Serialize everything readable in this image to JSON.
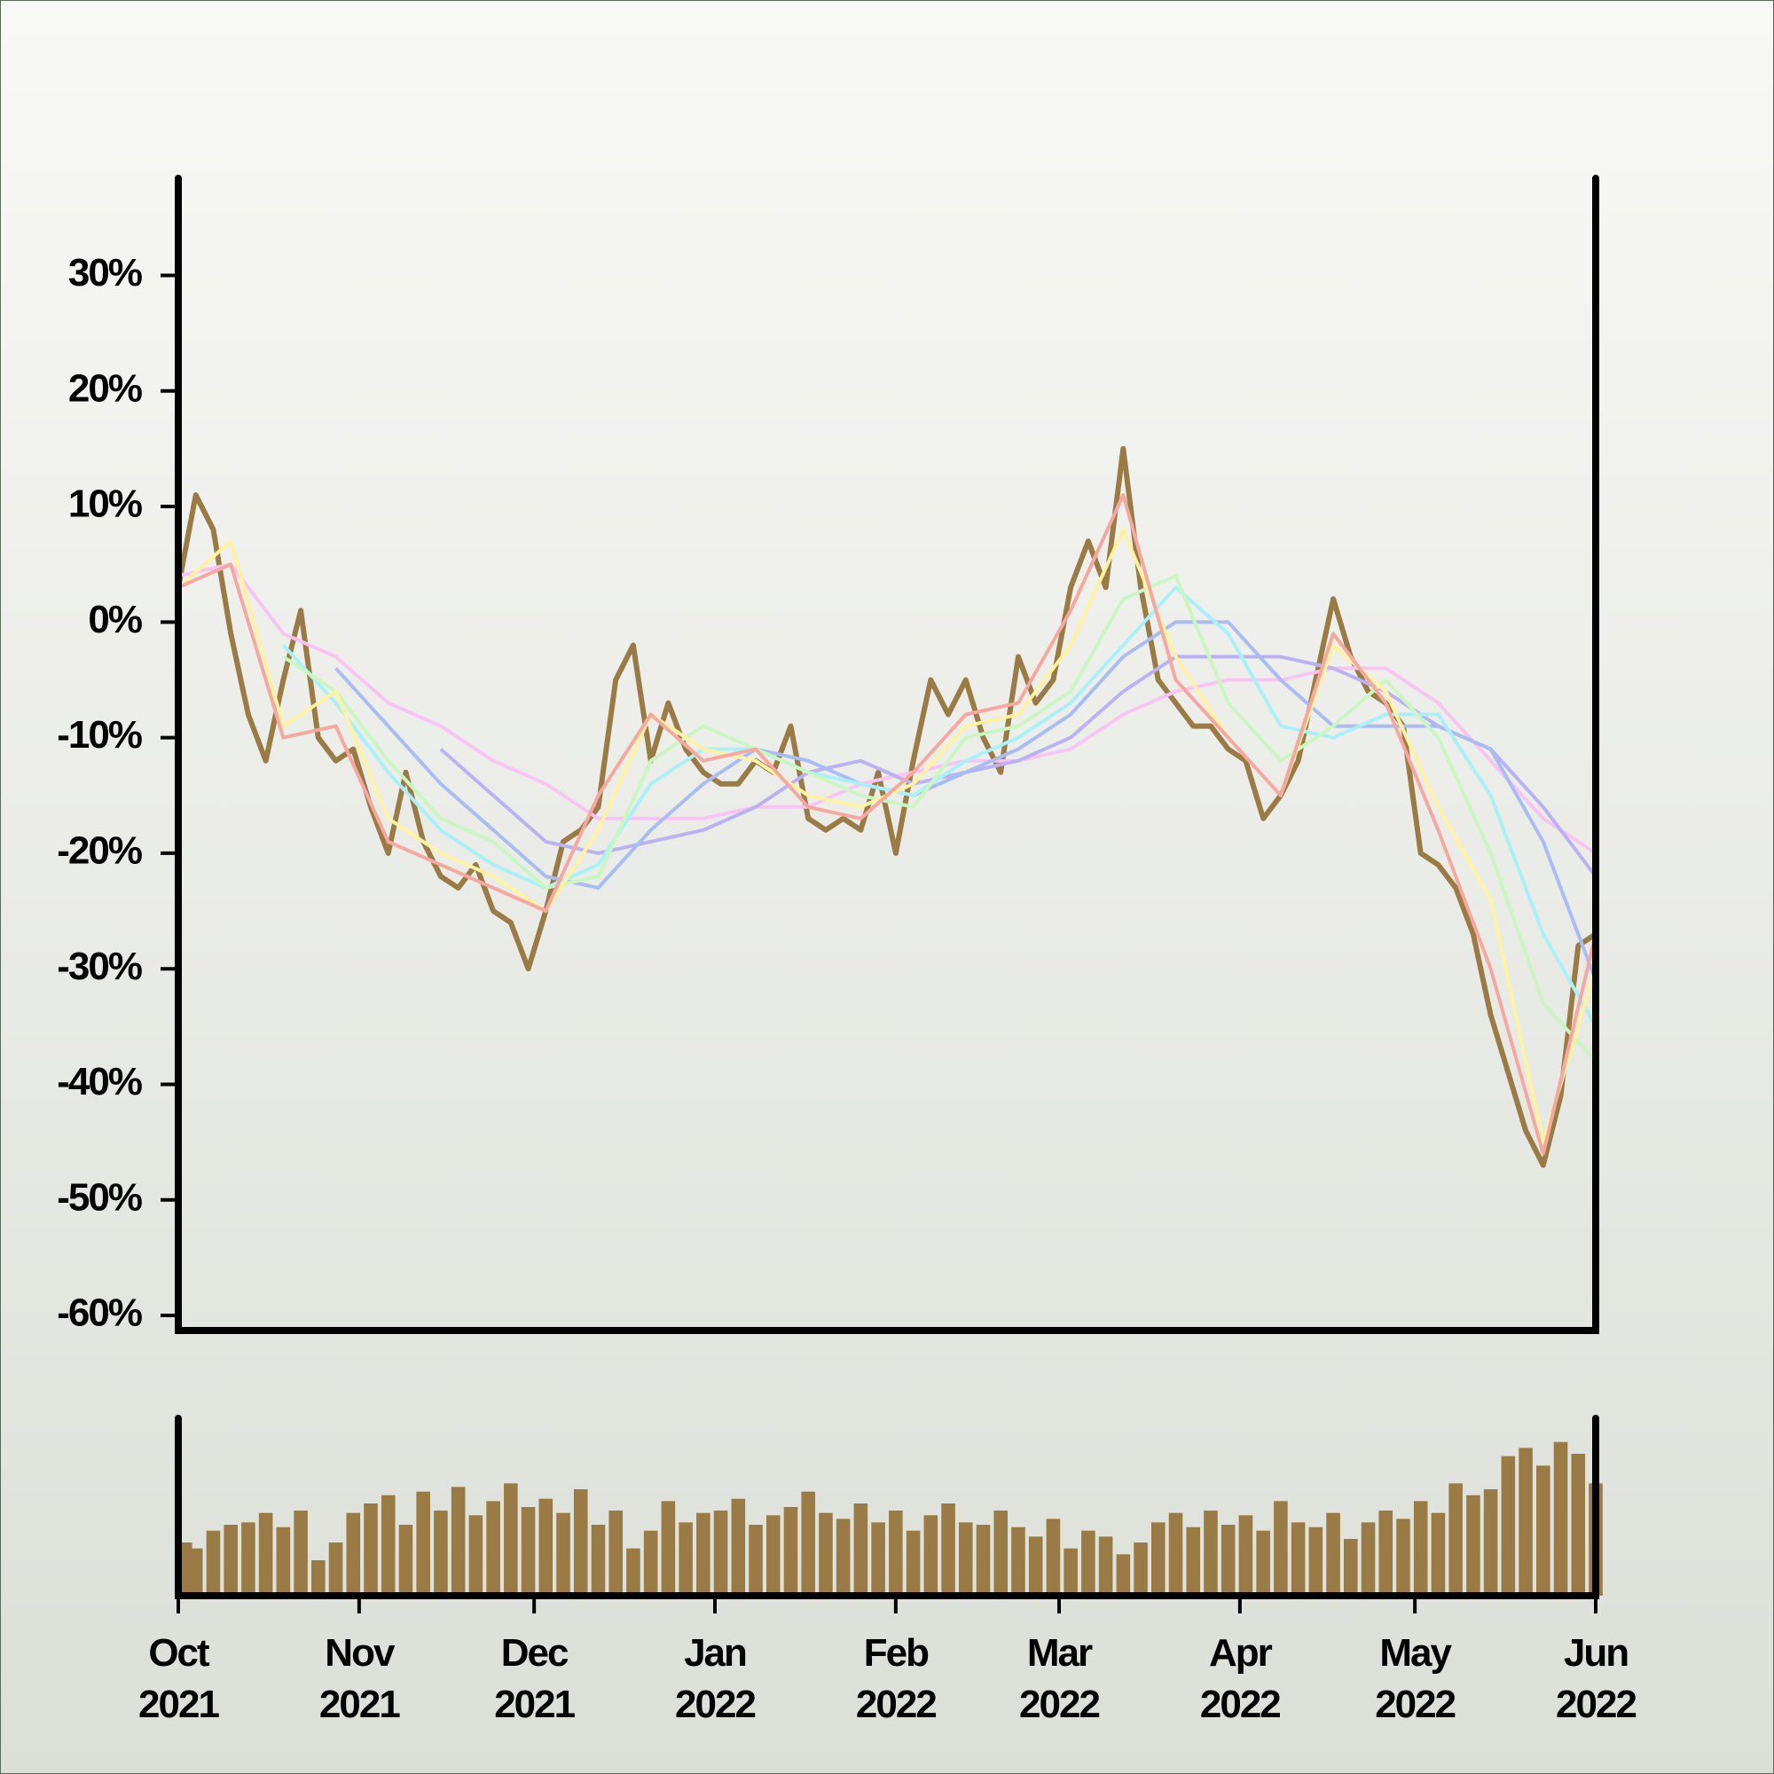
{
  "chart_data": [
    {
      "type": "line",
      "xlim": [
        0,
        243
      ],
      "ylim": [
        -61.3,
        38.4
      ],
      "yticks": [
        {
          "value": -60,
          "label": "-60%"
        },
        {
          "value": -50,
          "label": "-50%"
        },
        {
          "value": -40,
          "label": "-40%"
        },
        {
          "value": -30,
          "label": "-30%"
        },
        {
          "value": -20,
          "label": "-20%"
        },
        {
          "value": -10,
          "label": "-10%"
        },
        {
          "value": 0,
          "label": "0%"
        },
        {
          "value": 10,
          "label": "10%"
        },
        {
          "value": 20,
          "label": "20%"
        },
        {
          "value": 30,
          "label": "30%"
        }
      ],
      "x": [
        0,
        3,
        6,
        9,
        12,
        15,
        18,
        21,
        24,
        27,
        30,
        33,
        36,
        39,
        42,
        45,
        48,
        51,
        54,
        57,
        60,
        63,
        66,
        69,
        72,
        75,
        78,
        81,
        84,
        87,
        90,
        93,
        96,
        99,
        102,
        105,
        108,
        111,
        114,
        117,
        120,
        123,
        126,
        129,
        132,
        135,
        138,
        141,
        144,
        147,
        150,
        153,
        156,
        159,
        162,
        165,
        168,
        171,
        174,
        177,
        180,
        183,
        186,
        189,
        192,
        195,
        198,
        201,
        204,
        207,
        210,
        213,
        216,
        219,
        222,
        225,
        228,
        231,
        234,
        237,
        240,
        243
      ],
      "series": [
        {
          "color": "#9a7b45",
          "values": [
            3,
            11,
            8,
            -1,
            -8,
            -12,
            -5,
            1,
            -10,
            -12,
            -11,
            -16,
            -20,
            -13,
            -19,
            -22,
            -23,
            -21,
            -25,
            -26,
            -30,
            -25,
            -19,
            -18,
            -16,
            -5,
            -2,
            -12,
            -7,
            -11,
            -13,
            -14,
            -14,
            -12,
            -13,
            -9,
            -17,
            -18,
            -17,
            -18,
            -13,
            -20,
            -12,
            -5,
            -8,
            -5,
            -10,
            -13,
            -3,
            -7,
            -5,
            3,
            7,
            3,
            15,
            3,
            -5,
            -7,
            -9,
            -9,
            -11,
            -12,
            -17,
            -15,
            -12,
            -5,
            2,
            -3,
            -6,
            -7,
            -9,
            -20,
            -21,
            -23,
            -27,
            -34,
            -39,
            -44,
            -47,
            -41,
            -28,
            -27
          ]
        },
        {
          "color": "#f9c4f4",
          "x": [
            0,
            9,
            18,
            27,
            36,
            45,
            54,
            63,
            72,
            81,
            90,
            99,
            108,
            117,
            126,
            135,
            144,
            153,
            162,
            171,
            180,
            189,
            198,
            207,
            216,
            225,
            234,
            243
          ],
          "values": [
            4,
            5,
            -1,
            -3,
            -7,
            -9,
            -12,
            -14,
            -17,
            -17,
            -17,
            -16,
            -16,
            -14,
            -13,
            -12,
            -12,
            -11,
            -8,
            -6,
            -5,
            -5,
            -4,
            -4,
            -7,
            -12,
            -17,
            -20
          ]
        },
        {
          "color": "#bab2f2",
          "x": [
            0,
            9,
            18,
            27,
            36,
            45,
            54,
            63,
            72,
            81,
            90,
            99,
            108,
            117,
            126,
            135,
            144,
            153,
            162,
            171,
            180,
            189,
            198,
            207,
            216,
            225,
            234,
            243
          ],
          "values": [
            null,
            null,
            null,
            null,
            null,
            -11,
            -15,
            -19,
            -20,
            -19,
            -18,
            -16,
            -13,
            -12,
            -14,
            -13,
            -12,
            -10,
            -6,
            -3,
            -3,
            -3,
            -4,
            -6,
            -9,
            -11,
            -16,
            -22
          ]
        },
        {
          "color": "#a9bdf2",
          "x": [
            0,
            9,
            18,
            27,
            36,
            45,
            54,
            63,
            72,
            81,
            90,
            99,
            108,
            117,
            126,
            135,
            144,
            153,
            162,
            171,
            180,
            189,
            198,
            207,
            216,
            225,
            234,
            243
          ],
          "values": [
            null,
            null,
            null,
            -4,
            -9,
            -14,
            -18,
            -22,
            -23,
            -18,
            -14,
            -11,
            -12,
            -14,
            -15,
            -13,
            -11,
            -8,
            -3,
            0,
            0,
            -5,
            -9,
            -9,
            -9,
            -11,
            -19,
            -31
          ]
        },
        {
          "color": "#aaf0f8",
          "x": [
            0,
            9,
            18,
            27,
            36,
            45,
            54,
            63,
            72,
            81,
            90,
            99,
            108,
            117,
            126,
            135,
            144,
            153,
            162,
            171,
            180,
            189,
            198,
            207,
            216,
            225,
            234,
            243
          ],
          "values": [
            null,
            null,
            -2,
            -7,
            -13,
            -18,
            -21,
            -23,
            -21,
            -14,
            -11,
            -11,
            -13,
            -14,
            -15,
            -12,
            -10,
            -7,
            -2,
            3,
            -1,
            -9,
            -10,
            -8,
            -8,
            -15,
            -27,
            -35
          ]
        },
        {
          "color": "#caf6c2",
          "x": [
            0,
            9,
            18,
            27,
            36,
            45,
            54,
            63,
            72,
            81,
            90,
            99,
            108,
            117,
            126,
            135,
            144,
            153,
            162,
            171,
            180,
            189,
            198,
            207,
            216,
            225,
            234,
            243
          ],
          "values": [
            null,
            null,
            -3,
            -6,
            -12,
            -17,
            -19,
            -23,
            -22,
            -12,
            -9,
            -11,
            -13,
            -15,
            -16,
            -10,
            -9,
            -6,
            2,
            4,
            -7,
            -12,
            -9,
            -5,
            -10,
            -20,
            -33,
            -38
          ]
        },
        {
          "color": "#fff2a2",
          "x": [
            0,
            9,
            18,
            27,
            36,
            45,
            54,
            63,
            72,
            81,
            90,
            99,
            108,
            117,
            126,
            135,
            144,
            153,
            162,
            171,
            180,
            189,
            198,
            207,
            216,
            225,
            234,
            243
          ],
          "values": [
            3,
            7,
            -9,
            -6,
            -17,
            -20,
            -22,
            -25,
            -18,
            -8,
            -11,
            -12,
            -15,
            -16,
            -14,
            -9,
            -8,
            -2,
            8,
            -3,
            -10,
            -15,
            -2,
            -6,
            -16,
            -24,
            -45,
            -30
          ]
        },
        {
          "color": "#f5a8a0",
          "x": [
            0,
            9,
            18,
            27,
            36,
            45,
            54,
            63,
            72,
            81,
            90,
            99,
            108,
            117,
            126,
            135,
            144,
            153,
            162,
            171,
            180,
            189,
            198,
            207,
            216,
            225,
            234,
            243
          ],
          "values": [
            3,
            5,
            -10,
            -9,
            -19,
            -21,
            -23,
            -25,
            -15,
            -8,
            -12,
            -11,
            -16,
            -17,
            -13,
            -8,
            -7,
            1,
            11,
            -5,
            -10,
            -15,
            -1,
            -7,
            -18,
            -30,
            -46,
            -27
          ]
        }
      ]
    },
    {
      "type": "bar",
      "color": "#9a7b45",
      "xlim": [
        0,
        243
      ],
      "ylim": [
        0,
        150
      ],
      "xticks": [
        {
          "value": 0,
          "label": "Oct 2021"
        },
        {
          "value": 31,
          "label": "Nov 2021"
        },
        {
          "value": 61,
          "label": "Dec 2021"
        },
        {
          "value": 92,
          "label": "Jan 2022"
        },
        {
          "value": 123,
          "label": "Feb 2022"
        },
        {
          "value": 151,
          "label": "Mar 2022"
        },
        {
          "value": 182,
          "label": "Apr 2022"
        },
        {
          "value": 212,
          "label": "May 2022"
        },
        {
          "value": 243,
          "label": "Jun 2022"
        }
      ],
      "x": [
        0,
        3,
        6,
        9,
        12,
        15,
        18,
        21,
        24,
        27,
        30,
        33,
        36,
        39,
        42,
        45,
        48,
        51,
        54,
        57,
        60,
        63,
        66,
        69,
        72,
        75,
        78,
        81,
        84,
        87,
        90,
        93,
        96,
        99,
        102,
        105,
        108,
        111,
        114,
        117,
        120,
        123,
        126,
        129,
        132,
        135,
        138,
        141,
        144,
        147,
        150,
        153,
        156,
        159,
        162,
        165,
        168,
        171,
        174,
        177,
        180,
        183,
        186,
        189,
        192,
        195,
        198,
        201,
        204,
        207,
        210,
        213,
        216,
        219,
        222,
        225,
        228,
        231,
        234,
        237,
        240,
        243
      ],
      "values": [
        45,
        40,
        55,
        60,
        62,
        70,
        58,
        72,
        30,
        45,
        70,
        78,
        85,
        60,
        88,
        72,
        92,
        68,
        80,
        95,
        75,
        82,
        70,
        90,
        60,
        72,
        40,
        55,
        80,
        62,
        70,
        72,
        82,
        60,
        68,
        75,
        88,
        70,
        65,
        78,
        62,
        72,
        55,
        68,
        78,
        62,
        60,
        72,
        58,
        50,
        65,
        40,
        55,
        50,
        35,
        45,
        62,
        70,
        58,
        72,
        60,
        68,
        55,
        80,
        62,
        58,
        70,
        48,
        62,
        72,
        65,
        80,
        70,
        95,
        85,
        90,
        118,
        125,
        110,
        130,
        120,
        95
      ]
    }
  ]
}
